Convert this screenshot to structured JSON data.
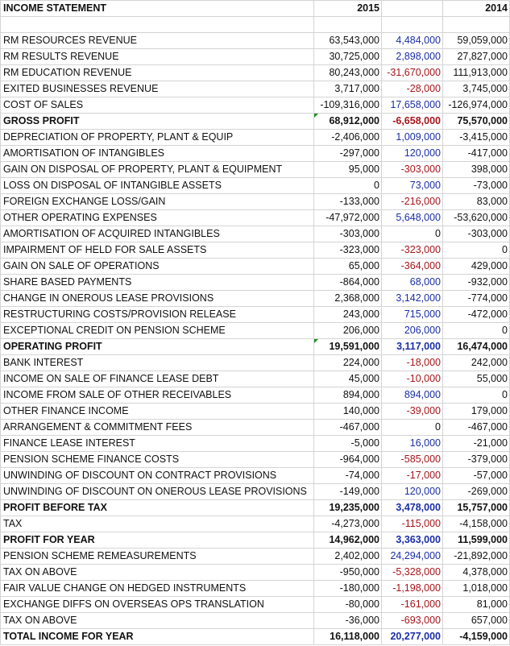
{
  "header": {
    "title": "INCOME STATEMENT",
    "col_a": "2015",
    "col_b": "",
    "col_c": "2014"
  },
  "rows": [
    {
      "label": "RM RESOURCES REVENUE",
      "a": "63,543,000",
      "b": "4,484,000",
      "c": "59,059,000",
      "b_color": "blue"
    },
    {
      "label": "RM RESULTS REVENUE",
      "a": "30,725,000",
      "b": "2,898,000",
      "c": "27,827,000",
      "b_color": "blue"
    },
    {
      "label": "RM EDUCATION REVENUE",
      "a": "80,243,000",
      "b": "-31,670,000",
      "c": "111,913,000",
      "b_color": "red"
    },
    {
      "label": "EXITED BUSINESSES REVENUE",
      "a": "3,717,000",
      "b": "-28,000",
      "c": "3,745,000",
      "b_color": "red"
    },
    {
      "label": "COST OF SALES",
      "a": "-109,316,000",
      "b": "17,658,000",
      "c": "-126,974,000",
      "b_color": "blue"
    },
    {
      "label": "GROSS PROFIT",
      "a": "68,912,000",
      "b": "-6,658,000",
      "c": "75,570,000",
      "b_color": "red",
      "bold": true,
      "flag": true
    },
    {
      "label": "DEPRECIATION OF PROPERTY, PLANT & EQUIP",
      "a": "-2,406,000",
      "b": "1,009,000",
      "c": "-3,415,000",
      "b_color": "blue"
    },
    {
      "label": "AMORTISATION OF INTANGIBLES",
      "a": "-297,000",
      "b": "120,000",
      "c": "-417,000",
      "b_color": "blue"
    },
    {
      "label": "GAIN ON DISPOSAL OF PROPERTY, PLANT & EQUIPMENT",
      "a": "95,000",
      "b": "-303,000",
      "c": "398,000",
      "b_color": "red"
    },
    {
      "label": "LOSS ON DISPOSAL OF INTANGIBLE ASSETS",
      "a": "0",
      "b": "73,000",
      "c": "-73,000",
      "b_color": "blue"
    },
    {
      "label": "FOREIGN EXCHANGE LOSS/GAIN",
      "a": "-133,000",
      "b": "-216,000",
      "c": "83,000",
      "b_color": "red"
    },
    {
      "label": "OTHER OPERATING EXPENSES",
      "a": "-47,972,000",
      "b": "5,648,000",
      "c": "-53,620,000",
      "b_color": "blue"
    },
    {
      "label": "AMORTISATION OF ACQUIRED INTANGIBLES",
      "a": "-303,000",
      "b": "0",
      "c": "-303,000",
      "b_color": "black"
    },
    {
      "label": "IMPAIRMENT OF HELD FOR SALE ASSETS",
      "a": "-323,000",
      "b": "-323,000",
      "c": "0",
      "b_color": "red"
    },
    {
      "label": "GAIN ON SALE OF OPERATIONS",
      "a": "65,000",
      "b": "-364,000",
      "c": "429,000",
      "b_color": "red"
    },
    {
      "label": "SHARE BASED PAYMENTS",
      "a": "-864,000",
      "b": "68,000",
      "c": "-932,000",
      "b_color": "blue"
    },
    {
      "label": "CHANGE IN ONEROUS LEASE PROVISIONS",
      "a": "2,368,000",
      "b": "3,142,000",
      "c": "-774,000",
      "b_color": "blue"
    },
    {
      "label": "RESTRUCTURING COSTS/PROVISION RELEASE",
      "a": "243,000",
      "b": "715,000",
      "c": "-472,000",
      "b_color": "blue"
    },
    {
      "label": "EXCEPTIONAL CREDIT ON PENSION SCHEME",
      "a": "206,000",
      "b": "206,000",
      "c": "0",
      "b_color": "blue"
    },
    {
      "label": "OPERATING PROFIT",
      "a": "19,591,000",
      "b": "3,117,000",
      "c": "16,474,000",
      "b_color": "blue",
      "bold": true,
      "flag": true
    },
    {
      "label": "BANK INTEREST",
      "a": "224,000",
      "b": "-18,000",
      "c": "242,000",
      "b_color": "red"
    },
    {
      "label": "INCOME ON SALE OF FINANCE LEASE DEBT",
      "a": "45,000",
      "b": "-10,000",
      "c": "55,000",
      "b_color": "red"
    },
    {
      "label": "INCOME FROM SALE OF OTHER RECEIVABLES",
      "a": "894,000",
      "b": "894,000",
      "c": "0",
      "b_color": "blue"
    },
    {
      "label": "OTHER FINANCE INCOME",
      "a": "140,000",
      "b": "-39,000",
      "c": "179,000",
      "b_color": "red"
    },
    {
      "label": "ARRANGEMENT & COMMITMENT FEES",
      "a": "-467,000",
      "b": "0",
      "c": "-467,000",
      "b_color": "black"
    },
    {
      "label": "FINANCE LEASE INTEREST",
      "a": "-5,000",
      "b": "16,000",
      "c": "-21,000",
      "b_color": "blue"
    },
    {
      "label": "PENSION SCHEME FINANCE COSTS",
      "a": "-964,000",
      "b": "-585,000",
      "c": "-379,000",
      "b_color": "red"
    },
    {
      "label": "UNWINDING OF DISCOUNT ON CONTRACT PROVISIONS",
      "a": "-74,000",
      "b": "-17,000",
      "c": "-57,000",
      "b_color": "red"
    },
    {
      "label": "UNWINDING OF DISCOUNT ON ONEROUS LEASE PROVISIONS",
      "a": "-149,000",
      "b": "120,000",
      "c": "-269,000",
      "b_color": "blue"
    },
    {
      "label": "PROFIT BEFORE TAX",
      "a": "19,235,000",
      "b": "3,478,000",
      "c": "15,757,000",
      "b_color": "blue",
      "bold": true
    },
    {
      "label": "TAX",
      "a": "-4,273,000",
      "b": "-115,000",
      "c": "-4,158,000",
      "b_color": "red"
    },
    {
      "label": "PROFIT FOR YEAR",
      "a": "14,962,000",
      "b": "3,363,000",
      "c": "11,599,000",
      "b_color": "blue",
      "bold": true
    },
    {
      "label": "PENSION SCHEME REMEASUREMENTS",
      "a": "2,402,000",
      "b": "24,294,000",
      "c": "-21,892,000",
      "b_color": "blue"
    },
    {
      "label": "TAX ON ABOVE",
      "a": "-950,000",
      "b": "-5,328,000",
      "c": "4,378,000",
      "b_color": "red"
    },
    {
      "label": "FAIR VALUE CHANGE ON HEDGED INSTRUMENTS",
      "a": "-180,000",
      "b": "-1,198,000",
      "c": "1,018,000",
      "b_color": "red"
    },
    {
      "label": "EXCHANGE DIFFS ON OVERSEAS OPS TRANSLATION",
      "a": "-80,000",
      "b": "-161,000",
      "c": "81,000",
      "b_color": "red"
    },
    {
      "label": "TAX ON ABOVE",
      "a": "-36,000",
      "b": "-693,000",
      "c": "657,000",
      "b_color": "red"
    },
    {
      "label": "TOTAL INCOME FOR YEAR",
      "a": "16,118,000",
      "b": "20,277,000",
      "c": "-4,159,000",
      "b_color": "blue",
      "bold": true
    }
  ]
}
